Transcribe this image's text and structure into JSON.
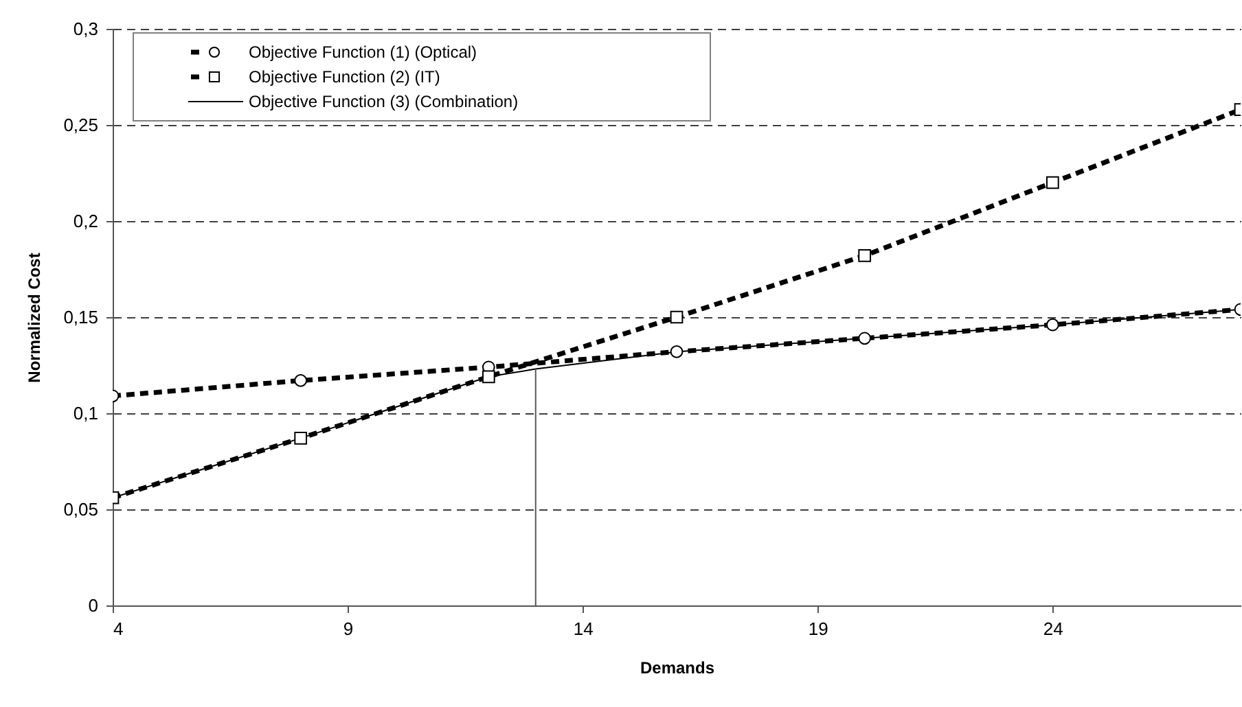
{
  "chart_data": {
    "type": "line",
    "xlabel": "Demands",
    "ylabel": "Normalized Cost",
    "xlim": [
      4,
      28
    ],
    "xticks": [
      4,
      9,
      14,
      19,
      24
    ],
    "ylim": [
      0,
      0.3
    ],
    "yticks": [
      0,
      {
        "value": 0.05,
        "label": "0,05"
      },
      {
        "value": 0.1,
        "label": "0,1"
      },
      {
        "value": 0.15,
        "label": "0,15"
      },
      {
        "value": 0.2,
        "label": "0,2"
      },
      {
        "value": 0.25,
        "label": "0,25"
      },
      {
        "value": 0.3,
        "label": "0,3"
      }
    ],
    "grid": "y",
    "legend": "top left",
    "series": [
      {
        "name": "Objective Function (1) (Optical)",
        "color": "#000000",
        "marker": "circle",
        "line_style": "dashed",
        "x": [
          4,
          8,
          12,
          16,
          20,
          24,
          28
        ],
        "values": [
          0.109,
          0.117,
          0.124,
          0.132,
          0.139,
          0.146,
          0.154
        ]
      },
      {
        "name": "Objective Function (2) (IT)",
        "color": "#000000",
        "marker": "square",
        "line_style": "dashed",
        "x": [
          4,
          8,
          12,
          16,
          20,
          24,
          28
        ],
        "values": [
          0.056,
          0.087,
          0.119,
          0.15,
          0.182,
          0.22,
          0.258
        ]
      },
      {
        "name": "Objective Function (3) (Combination)",
        "color": "#000000",
        "marker": "none",
        "line_style": "solid",
        "x": [
          4,
          8,
          12,
          13,
          16,
          20,
          24,
          28
        ],
        "values": [
          0.056,
          0.087,
          0.119,
          0.123,
          0.132,
          0.139,
          0.146,
          0.154
        ]
      }
    ],
    "ref_lines": [
      {
        "axis": "x",
        "value": 13,
        "color": "#595959"
      }
    ]
  }
}
